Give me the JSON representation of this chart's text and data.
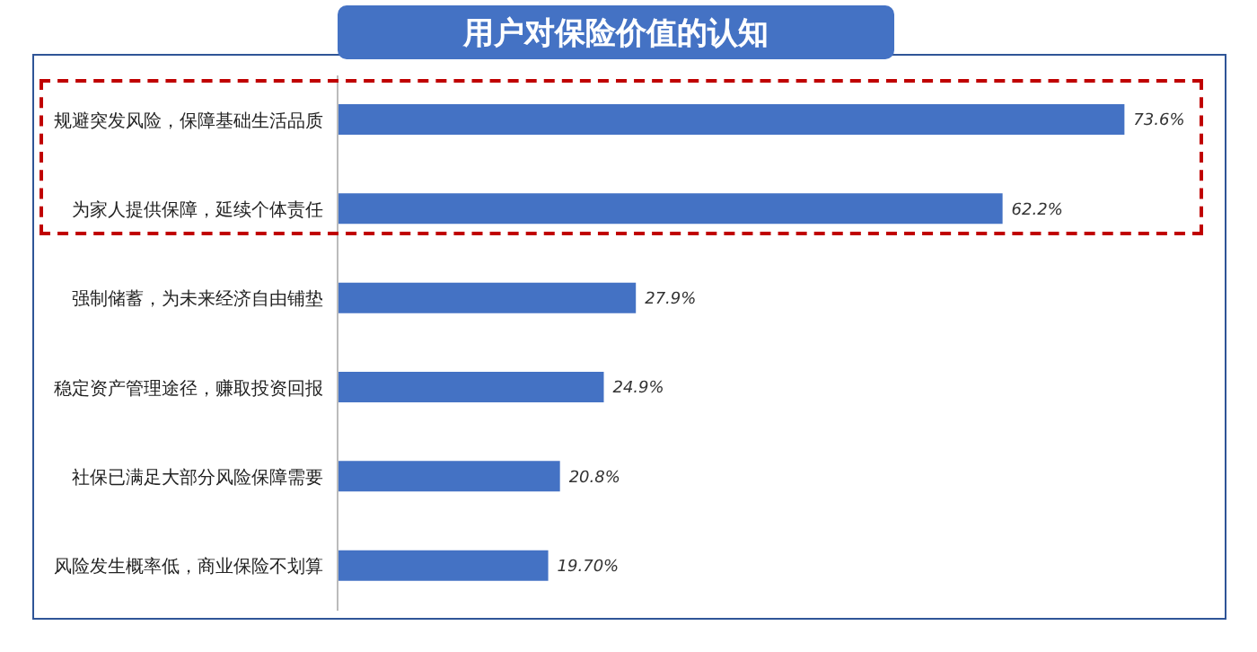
{
  "chart_data": {
    "type": "bar",
    "orientation": "horizontal",
    "title": "用户对保险价值的认知",
    "categories": [
      "规避突发风险，保障基础生活品质",
      "为家人提供保障，延续个体责任",
      "强制储蓄，为未来经济自由铺垫",
      "稳定资产管理途径，赚取投资回报",
      "社保已满足大部分风险保障需要",
      "风险发生概率低，商业保险不划算"
    ],
    "values": [
      73.6,
      62.2,
      27.9,
      24.9,
      20.8,
      19.7
    ],
    "value_labels": [
      "73.6%",
      "62.2%",
      "27.9%",
      "24.9%",
      "20.8%",
      "19.70%"
    ],
    "color": "#4472c4",
    "tick_labels": "y"
  }
}
